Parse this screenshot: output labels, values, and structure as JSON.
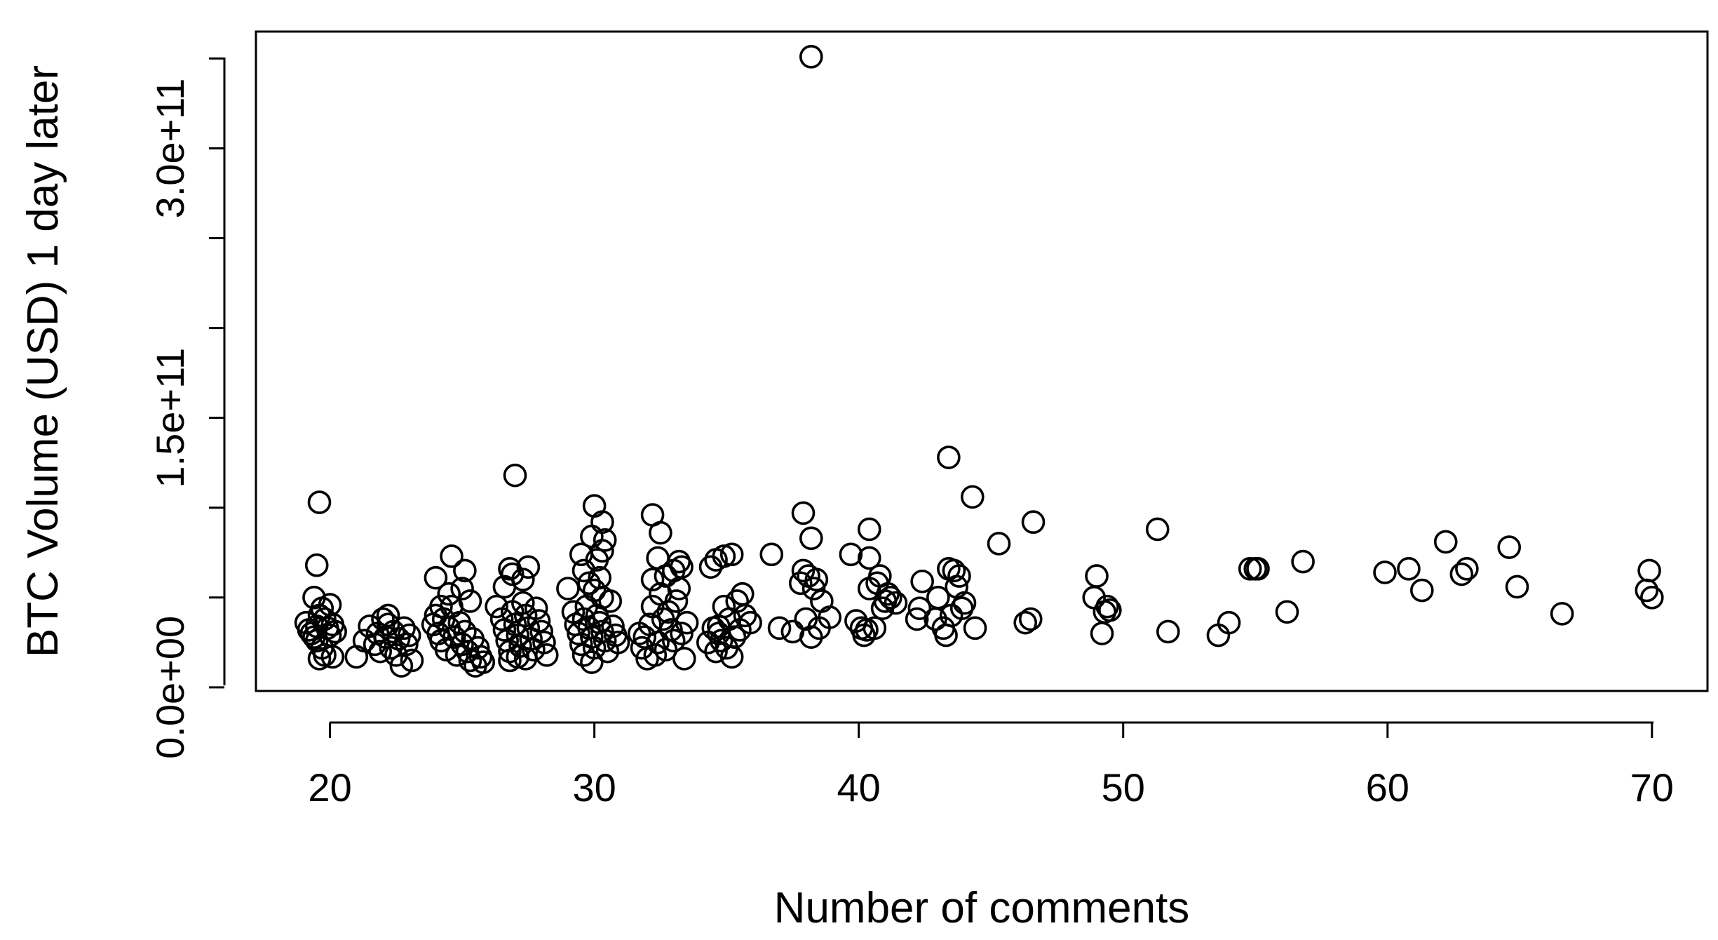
{
  "chart_data": {
    "type": "scatter",
    "xlabel": "Number of comments",
    "ylabel": "BTC Volume (USD) 1 day later",
    "xlim": [
      17.2,
      72.1
    ],
    "ylim": [
      -2000000000.0,
      365000000000.0
    ],
    "x_ticks": [
      20,
      30,
      40,
      50,
      60,
      70
    ],
    "x_tick_labels": [
      "20",
      "30",
      "40",
      "50",
      "60",
      "70"
    ],
    "y_ticks": [
      0,
      50000000000,
      100000000000,
      150000000000,
      200000000000,
      250000000000,
      300000000000,
      350000000000
    ],
    "y_tick_labels": [
      "0.0e+00",
      "",
      "",
      "1.5e+11",
      "",
      "",
      "3.0e+11",
      ""
    ],
    "grid": false,
    "legend": "none",
    "marker": "open-circle",
    "color": "#000000",
    "points": [
      [
        19.1,
        36000000000
      ],
      [
        19.2,
        32000000000
      ],
      [
        19.3,
        30000000000
      ],
      [
        19.4,
        28000000000
      ],
      [
        19.5,
        34000000000
      ],
      [
        19.5,
        26000000000
      ],
      [
        19.6,
        40000000000
      ],
      [
        19.7,
        22000000000
      ],
      [
        19.8,
        38000000000
      ],
      [
        19.9,
        33000000000
      ],
      [
        20.0,
        29000000000
      ],
      [
        20.1,
        35000000000
      ],
      [
        20.2,
        31000000000
      ],
      [
        19.6,
        16000000000
      ],
      [
        19.8,
        18000000000
      ],
      [
        20.1,
        17000000000
      ],
      [
        19.4,
        50000000000
      ],
      [
        19.7,
        44000000000
      ],
      [
        20.0,
        46000000000
      ],
      [
        19.5,
        68000000000
      ],
      [
        19.6,
        103000000000
      ],
      [
        21.0,
        17000000000
      ],
      [
        21.3,
        26000000000
      ],
      [
        21.5,
        34000000000
      ],
      [
        21.7,
        24000000000
      ],
      [
        21.8,
        30000000000
      ],
      [
        21.9,
        20000000000
      ],
      [
        22.0,
        38000000000
      ],
      [
        22.1,
        28000000000
      ],
      [
        22.2,
        35000000000
      ],
      [
        22.3,
        22000000000
      ],
      [
        22.4,
        31000000000
      ],
      [
        22.5,
        18000000000
      ],
      [
        22.6,
        27000000000
      ],
      [
        22.7,
        12000000000
      ],
      [
        22.8,
        33000000000
      ],
      [
        22.9,
        24000000000
      ],
      [
        23.0,
        29000000000
      ],
      [
        23.1,
        15000000000
      ],
      [
        22.2,
        40000000000
      ],
      [
        23.9,
        35000000000
      ],
      [
        24.0,
        40000000000
      ],
      [
        24.1,
        30000000000
      ],
      [
        24.2,
        26000000000
      ],
      [
        24.3,
        38000000000
      ],
      [
        24.4,
        21000000000
      ],
      [
        24.5,
        33000000000
      ],
      [
        24.6,
        45000000000
      ],
      [
        24.7,
        28000000000
      ],
      [
        24.8,
        18000000000
      ],
      [
        24.9,
        36000000000
      ],
      [
        25.0,
        24000000000
      ],
      [
        25.1,
        31000000000
      ],
      [
        25.2,
        20000000000
      ],
      [
        25.3,
        15000000000
      ],
      [
        25.4,
        27000000000
      ],
      [
        25.5,
        12000000000
      ],
      [
        25.6,
        22000000000
      ],
      [
        25.7,
        17000000000
      ],
      [
        25.8,
        14000000000
      ],
      [
        24.0,
        61000000000
      ],
      [
        24.5,
        52000000000
      ],
      [
        25.0,
        55000000000
      ],
      [
        25.3,
        48000000000
      ],
      [
        24.2,
        45000000000
      ],
      [
        24.6,
        73000000000
      ],
      [
        25.1,
        65000000000
      ],
      [
        26.3,
        45000000000
      ],
      [
        26.5,
        38000000000
      ],
      [
        26.6,
        32000000000
      ],
      [
        26.7,
        26000000000
      ],
      [
        26.8,
        20000000000
      ],
      [
        26.9,
        42000000000
      ],
      [
        27.0,
        35000000000
      ],
      [
        27.1,
        29000000000
      ],
      [
        27.2,
        23000000000
      ],
      [
        27.3,
        47000000000
      ],
      [
        27.4,
        40000000000
      ],
      [
        27.5,
        33000000000
      ],
      [
        27.6,
        27000000000
      ],
      [
        27.7,
        21000000000
      ],
      [
        27.8,
        44000000000
      ],
      [
        27.9,
        37000000000
      ],
      [
        28.0,
        31000000000
      ],
      [
        28.1,
        25000000000
      ],
      [
        28.2,
        18000000000
      ],
      [
        26.8,
        15000000000
      ],
      [
        27.1,
        17000000000
      ],
      [
        27.4,
        16000000000
      ],
      [
        26.6,
        56000000000
      ],
      [
        26.9,
        63000000000
      ],
      [
        27.3,
        60000000000
      ],
      [
        26.8,
        66000000000
      ],
      [
        27.5,
        67000000000
      ],
      [
        27.0,
        118000000000
      ],
      [
        29.0,
        55000000000
      ],
      [
        29.2,
        42000000000
      ],
      [
        29.3,
        35000000000
      ],
      [
        29.4,
        30000000000
      ],
      [
        29.5,
        24000000000
      ],
      [
        29.6,
        38000000000
      ],
      [
        29.7,
        45000000000
      ],
      [
        29.8,
        33000000000
      ],
      [
        29.9,
        28000000000
      ],
      [
        30.0,
        22000000000
      ],
      [
        30.1,
        40000000000
      ],
      [
        30.2,
        36000000000
      ],
      [
        30.3,
        31000000000
      ],
      [
        30.4,
        26000000000
      ],
      [
        30.5,
        20000000000
      ],
      [
        30.6,
        48000000000
      ],
      [
        30.7,
        34000000000
      ],
      [
        30.8,
        29000000000
      ],
      [
        30.9,
        25000000000
      ],
      [
        29.9,
        14000000000
      ],
      [
        29.6,
        18000000000
      ],
      [
        30.3,
        50000000000
      ],
      [
        29.8,
        58000000000
      ],
      [
        30.0,
        54000000000
      ],
      [
        30.2,
        61000000000
      ],
      [
        29.5,
        74000000000
      ],
      [
        30.3,
        76000000000
      ],
      [
        30.4,
        82000000000
      ],
      [
        29.9,
        84000000000
      ],
      [
        30.0,
        101000000000
      ],
      [
        30.3,
        92000000000
      ],
      [
        29.6,
        65000000000
      ],
      [
        30.1,
        71000000000
      ],
      [
        31.7,
        30000000000
      ],
      [
        31.8,
        22000000000
      ],
      [
        31.9,
        28000000000
      ],
      [
        32.0,
        16000000000
      ],
      [
        32.1,
        35000000000
      ],
      [
        32.2,
        45000000000
      ],
      [
        32.3,
        18000000000
      ],
      [
        32.4,
        25000000000
      ],
      [
        32.5,
        52000000000
      ],
      [
        32.6,
        38000000000
      ],
      [
        32.7,
        21000000000
      ],
      [
        32.8,
        42000000000
      ],
      [
        32.9,
        32000000000
      ],
      [
        33.0,
        26000000000
      ],
      [
        33.1,
        48000000000
      ],
      [
        33.2,
        55000000000
      ],
      [
        33.3,
        30000000000
      ],
      [
        33.4,
        16000000000
      ],
      [
        33.5,
        36000000000
      ],
      [
        32.2,
        60000000000
      ],
      [
        32.4,
        72000000000
      ],
      [
        32.7,
        62000000000
      ],
      [
        33.0,
        65000000000
      ],
      [
        33.2,
        70000000000
      ],
      [
        33.3,
        67000000000
      ],
      [
        32.2,
        96000000000
      ],
      [
        32.5,
        86000000000
      ],
      [
        34.3,
        25000000000
      ],
      [
        34.5,
        33000000000
      ],
      [
        34.6,
        20000000000
      ],
      [
        34.7,
        30000000000
      ],
      [
        34.8,
        26000000000
      ],
      [
        34.9,
        45000000000
      ],
      [
        35.0,
        22000000000
      ],
      [
        35.1,
        38000000000
      ],
      [
        35.2,
        17000000000
      ],
      [
        35.3,
        28000000000
      ],
      [
        35.4,
        48000000000
      ],
      [
        35.5,
        32000000000
      ],
      [
        35.6,
        52000000000
      ],
      [
        35.7,
        40000000000
      ],
      [
        35.9,
        36000000000
      ],
      [
        34.6,
        71000000000
      ],
      [
        34.9,
        73000000000
      ],
      [
        35.2,
        74000000000
      ],
      [
        34.7,
        34000000000
      ],
      [
        34.4,
        67000000000
      ],
      [
        36.7,
        74000000000
      ],
      [
        37.0,
        33000000000
      ],
      [
        37.5,
        31000000000
      ],
      [
        37.8,
        58000000000
      ],
      [
        37.9,
        65000000000
      ],
      [
        38.0,
        38000000000
      ],
      [
        38.1,
        62000000000
      ],
      [
        38.2,
        28000000000
      ],
      [
        38.3,
        55000000000
      ],
      [
        38.4,
        60000000000
      ],
      [
        38.5,
        33000000000
      ],
      [
        38.6,
        48000000000
      ],
      [
        38.9,
        39000000000
      ],
      [
        37.9,
        97000000000
      ],
      [
        38.2,
        83000000000
      ],
      [
        38.2,
        351000000000
      ],
      [
        39.7,
        74000000000
      ],
      [
        39.9,
        37000000000
      ],
      [
        40.1,
        33000000000
      ],
      [
        40.2,
        29000000000
      ],
      [
        40.3,
        32000000000
      ],
      [
        40.4,
        55000000000
      ],
      [
        40.4,
        72000000000
      ],
      [
        40.4,
        88000000000
      ],
      [
        40.6,
        33000000000
      ],
      [
        40.7,
        58000000000
      ],
      [
        40.8,
        62000000000
      ],
      [
        40.9,
        44000000000
      ],
      [
        41.0,
        48000000000
      ],
      [
        41.1,
        52000000000
      ],
      [
        41.2,
        50000000000
      ],
      [
        41.4,
        47000000000
      ],
      [
        42.2,
        38000000000
      ],
      [
        42.3,
        44000000000
      ],
      [
        42.4,
        59000000000
      ],
      [
        42.9,
        38000000000
      ],
      [
        43.0,
        50000000000
      ],
      [
        43.2,
        33000000000
      ],
      [
        43.3,
        29000000000
      ],
      [
        43.4,
        66000000000
      ],
      [
        43.5,
        40000000000
      ],
      [
        43.6,
        65000000000
      ],
      [
        43.7,
        56000000000
      ],
      [
        43.8,
        62000000000
      ],
      [
        43.9,
        44000000000
      ],
      [
        44.0,
        47000000000
      ],
      [
        44.4,
        33000000000
      ],
      [
        43.4,
        128000000000
      ],
      [
        44.3,
        106000000000
      ],
      [
        45.3,
        80000000000
      ],
      [
        46.3,
        36000000000
      ],
      [
        46.5,
        38000000000
      ],
      [
        46.6,
        92000000000
      ],
      [
        48.9,
        50000000000
      ],
      [
        49.0,
        62000000000
      ],
      [
        49.2,
        30000000000
      ],
      [
        49.3,
        42000000000
      ],
      [
        49.4,
        45000000000
      ],
      [
        49.5,
        43000000000
      ],
      [
        51.3,
        88000000000
      ],
      [
        51.7,
        31000000000
      ],
      [
        53.6,
        29000000000
      ],
      [
        54.0,
        36000000000
      ],
      [
        54.8,
        66000000000
      ],
      [
        55.0,
        66000000000
      ],
      [
        55.1,
        66000000000
      ],
      [
        56.2,
        42000000000
      ],
      [
        56.8,
        70000000000
      ],
      [
        59.9,
        64000000000
      ],
      [
        60.8,
        66000000000
      ],
      [
        61.3,
        54000000000
      ],
      [
        62.2,
        81000000000
      ],
      [
        62.8,
        63000000000
      ],
      [
        63.0,
        66000000000
      ],
      [
        64.6,
        78000000000
      ],
      [
        64.9,
        56000000000
      ],
      [
        66.6,
        41000000000
      ],
      [
        69.8,
        54000000000
      ],
      [
        69.9,
        65000000000
      ],
      [
        70.0,
        50000000000
      ]
    ]
  }
}
